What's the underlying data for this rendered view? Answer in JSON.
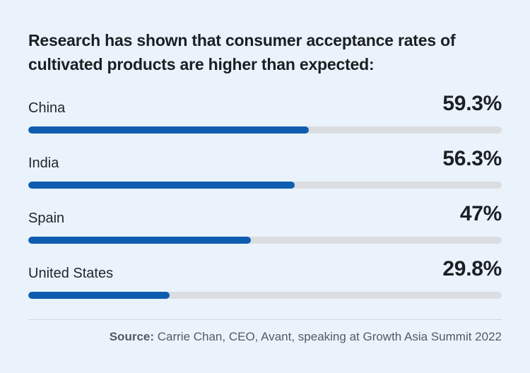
{
  "chart_data": {
    "type": "bar",
    "orientation": "horizontal",
    "title": "Research has shown that consumer acceptance rates of cultivated products are higher than expected:",
    "categories": [
      "China",
      "India",
      "Spain",
      "United States"
    ],
    "values": [
      59.3,
      56.3,
      47,
      29.8
    ],
    "value_labels": [
      "59.3%",
      "56.3%",
      "47%",
      "29.8%"
    ],
    "xlim": [
      0,
      100
    ],
    "unit": "%"
  },
  "source": {
    "prefix": "Source:",
    "text": " Carrie Chan, CEO, Avant, speaking at Growth Asia Summit 2022"
  },
  "colors": {
    "bar_fill": "#0f5db0",
    "bar_track": "#dcdde0",
    "background": "#eaf3fc"
  }
}
